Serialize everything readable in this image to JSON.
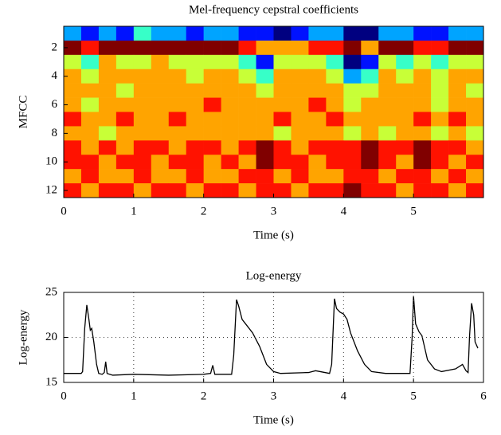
{
  "chart_data": [
    {
      "type": "heatmap",
      "title": "Mel-frequency cepstral coefficients",
      "xlabel": "Time (s)",
      "ylabel": "MFCC",
      "colormap": "jet",
      "x": [
        0.125,
        0.375,
        0.625,
        0.875,
        1.125,
        1.375,
        1.625,
        1.875,
        2.125,
        2.375,
        2.625,
        2.875,
        3.125,
        3.375,
        3.625,
        3.875,
        4.125,
        4.375,
        4.625,
        4.875,
        5.125,
        5.375,
        5.625,
        5.875
      ],
      "y": [
        1,
        2,
        3,
        4,
        5,
        6,
        7,
        8,
        9,
        10,
        11,
        12
      ],
      "values": [
        [
          4,
          3,
          4,
          3,
          5,
          4,
          4,
          3,
          4,
          4,
          3,
          3,
          2,
          3,
          4,
          4,
          2,
          2,
          4,
          4,
          3,
          3,
          4,
          4
        ],
        [
          9,
          8,
          9,
          9,
          9,
          9,
          9,
          9,
          9,
          9,
          8,
          7,
          7,
          7,
          8,
          8,
          9,
          7,
          9,
          9,
          8,
          8,
          9,
          9
        ],
        [
          6,
          5,
          7,
          6,
          6,
          7,
          6,
          6,
          6,
          6,
          5,
          3,
          6,
          6,
          6,
          5,
          2,
          3,
          6,
          5,
          6,
          5,
          6,
          6
        ],
        [
          7,
          6,
          7,
          7,
          7,
          7,
          7,
          6,
          7,
          7,
          6,
          5,
          7,
          7,
          7,
          6,
          4,
          5,
          7,
          6,
          7,
          6,
          7,
          7
        ],
        [
          7,
          7,
          7,
          6,
          7,
          7,
          7,
          7,
          7,
          7,
          7,
          6,
          7,
          7,
          7,
          7,
          6,
          6,
          7,
          7,
          7,
          6,
          7,
          6
        ],
        [
          7,
          6,
          7,
          7,
          7,
          7,
          7,
          7,
          8,
          7,
          7,
          7,
          7,
          7,
          8,
          7,
          6,
          7,
          7,
          7,
          7,
          6,
          7,
          7
        ],
        [
          8,
          7,
          7,
          8,
          7,
          7,
          8,
          7,
          7,
          7,
          7,
          7,
          8,
          7,
          7,
          8,
          7,
          7,
          7,
          7,
          8,
          7,
          8,
          7
        ],
        [
          7,
          7,
          6,
          7,
          7,
          7,
          7,
          7,
          7,
          7,
          7,
          7,
          6,
          7,
          7,
          7,
          6,
          7,
          6,
          7,
          7,
          6,
          7,
          6
        ],
        [
          8,
          7,
          8,
          7,
          8,
          8,
          7,
          8,
          8,
          7,
          8,
          9,
          8,
          7,
          8,
          8,
          8,
          9,
          8,
          8,
          9,
          8,
          8,
          7
        ],
        [
          8,
          8,
          7,
          8,
          8,
          7,
          8,
          8,
          7,
          8,
          7,
          9,
          8,
          8,
          7,
          8,
          8,
          9,
          8,
          7,
          9,
          8,
          7,
          8
        ],
        [
          7,
          8,
          7,
          7,
          8,
          7,
          7,
          8,
          7,
          7,
          8,
          8,
          7,
          8,
          7,
          7,
          8,
          8,
          7,
          8,
          8,
          7,
          8,
          7
        ],
        [
          8,
          7,
          8,
          8,
          7,
          8,
          8,
          7,
          8,
          8,
          7,
          8,
          8,
          7,
          8,
          8,
          9,
          8,
          8,
          7,
          8,
          8,
          7,
          8
        ]
      ],
      "xlim": [
        0,
        6
      ],
      "xticks": [
        0,
        1,
        2,
        3,
        4,
        5
      ],
      "ylim": [
        12.5,
        0.5
      ],
      "yticks": [
        2,
        4,
        6,
        8,
        10,
        12
      ]
    },
    {
      "type": "line",
      "title": "Log-energy",
      "xlabel": "Time (s)",
      "ylabel": "Log-energy",
      "x": [
        0,
        0.25,
        0.27,
        0.3,
        0.33,
        0.36,
        0.38,
        0.4,
        0.43,
        0.47,
        0.5,
        0.55,
        0.58,
        0.6,
        0.62,
        0.7,
        1.0,
        1.5,
        2.0,
        2.1,
        2.13,
        2.16,
        2.4,
        2.43,
        2.47,
        2.5,
        2.55,
        2.6,
        2.7,
        2.8,
        2.9,
        3.0,
        3.1,
        3.5,
        3.6,
        3.8,
        3.83,
        3.87,
        3.9,
        3.95,
        4.0,
        4.05,
        4.1,
        4.2,
        4.3,
        4.4,
        4.6,
        4.95,
        4.98,
        5.0,
        5.03,
        5.08,
        5.12,
        5.2,
        5.3,
        5.4,
        5.6,
        5.7,
        5.75,
        5.78,
        5.8,
        5.83,
        5.86,
        5.88,
        5.92
      ],
      "series": [
        {
          "name": "Log-energy",
          "color": "#000000",
          "values": [
            16,
            16,
            16.2,
            21,
            23.6,
            22,
            20.8,
            21,
            19.5,
            17,
            16,
            15.9,
            16.1,
            17.3,
            16,
            15.8,
            15.9,
            15.8,
            15.9,
            16,
            16.9,
            15.9,
            15.9,
            18,
            24.2,
            23.5,
            22,
            21.5,
            20.5,
            19,
            17,
            16.2,
            16,
            16.1,
            16.3,
            16,
            17,
            24.3,
            23.2,
            22.8,
            22.6,
            22,
            20.5,
            18.5,
            17,
            16.2,
            16,
            16,
            20,
            24.6,
            21.5,
            20.6,
            20.2,
            17.5,
            16.5,
            16.2,
            16.5,
            17,
            16.3,
            16.1,
            20,
            23.8,
            22.5,
            19.5,
            18.8
          ]
        }
      ],
      "xlim": [
        0,
        6
      ],
      "xticks": [
        0,
        1,
        2,
        3,
        4,
        5,
        6
      ],
      "ylim": [
        15,
        25
      ],
      "yticks": [
        15,
        20,
        25
      ],
      "grid": true
    }
  ]
}
